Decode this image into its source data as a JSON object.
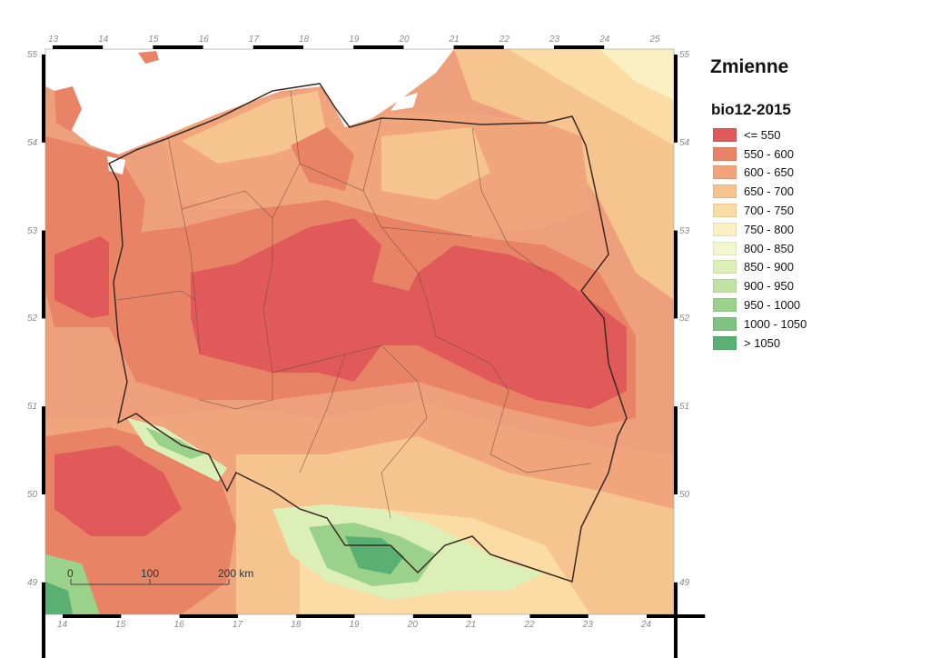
{
  "legend": {
    "title": "Zmienne",
    "subtitle": "bio12-2015",
    "items": [
      {
        "label": "<= 550",
        "color": "#e05a5a"
      },
      {
        "label": "550 - 600",
        "color": "#e98366"
      },
      {
        "label": "600 - 650",
        "color": "#f0a57d"
      },
      {
        "label": "650 - 700",
        "color": "#f6c48f"
      },
      {
        "label": "700 - 750",
        "color": "#fbdca4"
      },
      {
        "label": "750 - 800",
        "color": "#fcefc2"
      },
      {
        "label": "800 - 850",
        "color": "#f2f7cf"
      },
      {
        "label": "850 - 900",
        "color": "#dcefb6"
      },
      {
        "label": "900 - 950",
        "color": "#bfe3a0"
      },
      {
        "label": "950 - 1000",
        "color": "#9bd28b"
      },
      {
        "label": "1000 - 1050",
        "color": "#7cc47f"
      },
      {
        "label": "> 1050",
        "color": "#5ab072"
      }
    ]
  },
  "axes": {
    "top_ticks": [
      "13",
      "14",
      "15",
      "16",
      "17",
      "18",
      "19",
      "20",
      "21",
      "22",
      "23",
      "24",
      "25"
    ],
    "bottom_ticks": [
      "14",
      "15",
      "16",
      "17",
      "18",
      "19",
      "20",
      "21",
      "22",
      "23",
      "24"
    ],
    "left_ticks": [
      "55",
      "54",
      "53",
      "52",
      "51",
      "50",
      "49"
    ],
    "right_ticks": [
      "55",
      "54",
      "53",
      "52",
      "51",
      "50",
      "49"
    ]
  },
  "scalebar": {
    "labels": [
      "0",
      "100",
      "200 km"
    ]
  },
  "colors": {
    "sea": "#ffffff",
    "border": "#3a2a20"
  }
}
